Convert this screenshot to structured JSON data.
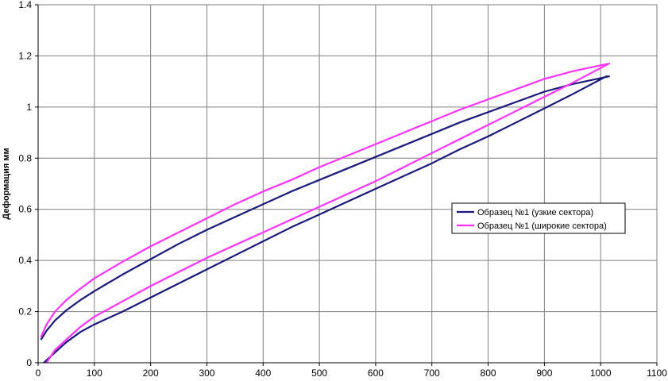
{
  "chart_data": {
    "type": "line",
    "title": "",
    "xlabel": "",
    "ylabel": "Деформация мм",
    "xlim": [
      0,
      1100
    ],
    "ylim": [
      0,
      1.4
    ],
    "xticks": [
      0,
      100,
      200,
      300,
      400,
      500,
      600,
      700,
      800,
      900,
      1000,
      1100
    ],
    "yticks": [
      0,
      0.2,
      0.4,
      0.6,
      0.8,
      1,
      1.2,
      1.4
    ],
    "ytick_labels": [
      "0",
      "0.2",
      "0.4",
      "0.6",
      "0.8",
      "1",
      "1.2",
      "1.4"
    ],
    "grid": true,
    "legend_position": "right",
    "series": [
      {
        "name": "Образец №1 (узкие сектора)",
        "color": "#1a1a7a",
        "loading": {
          "x": [
            10,
            30,
            50,
            75,
            100,
            150,
            200,
            250,
            300,
            350,
            400,
            450,
            500,
            550,
            600,
            650,
            700,
            750,
            800,
            850,
            900,
            950,
            1010
          ],
          "y": [
            0.0,
            0.04,
            0.08,
            0.12,
            0.15,
            0.2,
            0.255,
            0.31,
            0.365,
            0.42,
            0.475,
            0.53,
            0.58,
            0.63,
            0.68,
            0.73,
            0.78,
            0.835,
            0.885,
            0.94,
            0.995,
            1.05,
            1.12
          ]
        },
        "unloading": {
          "x": [
            1015,
            950,
            900,
            850,
            800,
            750,
            700,
            650,
            600,
            550,
            500,
            450,
            400,
            350,
            300,
            250,
            200,
            150,
            100,
            75,
            50,
            30,
            15,
            5
          ],
          "y": [
            1.12,
            1.09,
            1.06,
            1.02,
            0.98,
            0.94,
            0.895,
            0.85,
            0.805,
            0.76,
            0.715,
            0.67,
            0.62,
            0.57,
            0.52,
            0.465,
            0.405,
            0.345,
            0.28,
            0.245,
            0.205,
            0.165,
            0.125,
            0.09
          ]
        }
      },
      {
        "name": "Образец №1 (широкие сектора)",
        "color": "#ff33ff",
        "loading": {
          "x": [
            15,
            30,
            50,
            75,
            100,
            150,
            200,
            250,
            300,
            350,
            400,
            450,
            500,
            550,
            600,
            650,
            700,
            750,
            800,
            850,
            900,
            950,
            1015
          ],
          "y": [
            0.0,
            0.05,
            0.09,
            0.14,
            0.18,
            0.24,
            0.3,
            0.355,
            0.41,
            0.46,
            0.51,
            0.56,
            0.61,
            0.66,
            0.71,
            0.765,
            0.82,
            0.875,
            0.93,
            0.985,
            1.04,
            1.095,
            1.17
          ]
        },
        "unloading": {
          "x": [
            1015,
            950,
            900,
            850,
            800,
            750,
            700,
            650,
            600,
            550,
            500,
            450,
            400,
            350,
            300,
            250,
            200,
            150,
            100,
            75,
            50,
            30,
            15,
            5
          ],
          "y": [
            1.17,
            1.14,
            1.11,
            1.07,
            1.03,
            0.99,
            0.945,
            0.9,
            0.855,
            0.81,
            0.765,
            0.715,
            0.67,
            0.62,
            0.565,
            0.51,
            0.455,
            0.395,
            0.33,
            0.29,
            0.245,
            0.2,
            0.15,
            0.1
          ]
        }
      }
    ]
  }
}
